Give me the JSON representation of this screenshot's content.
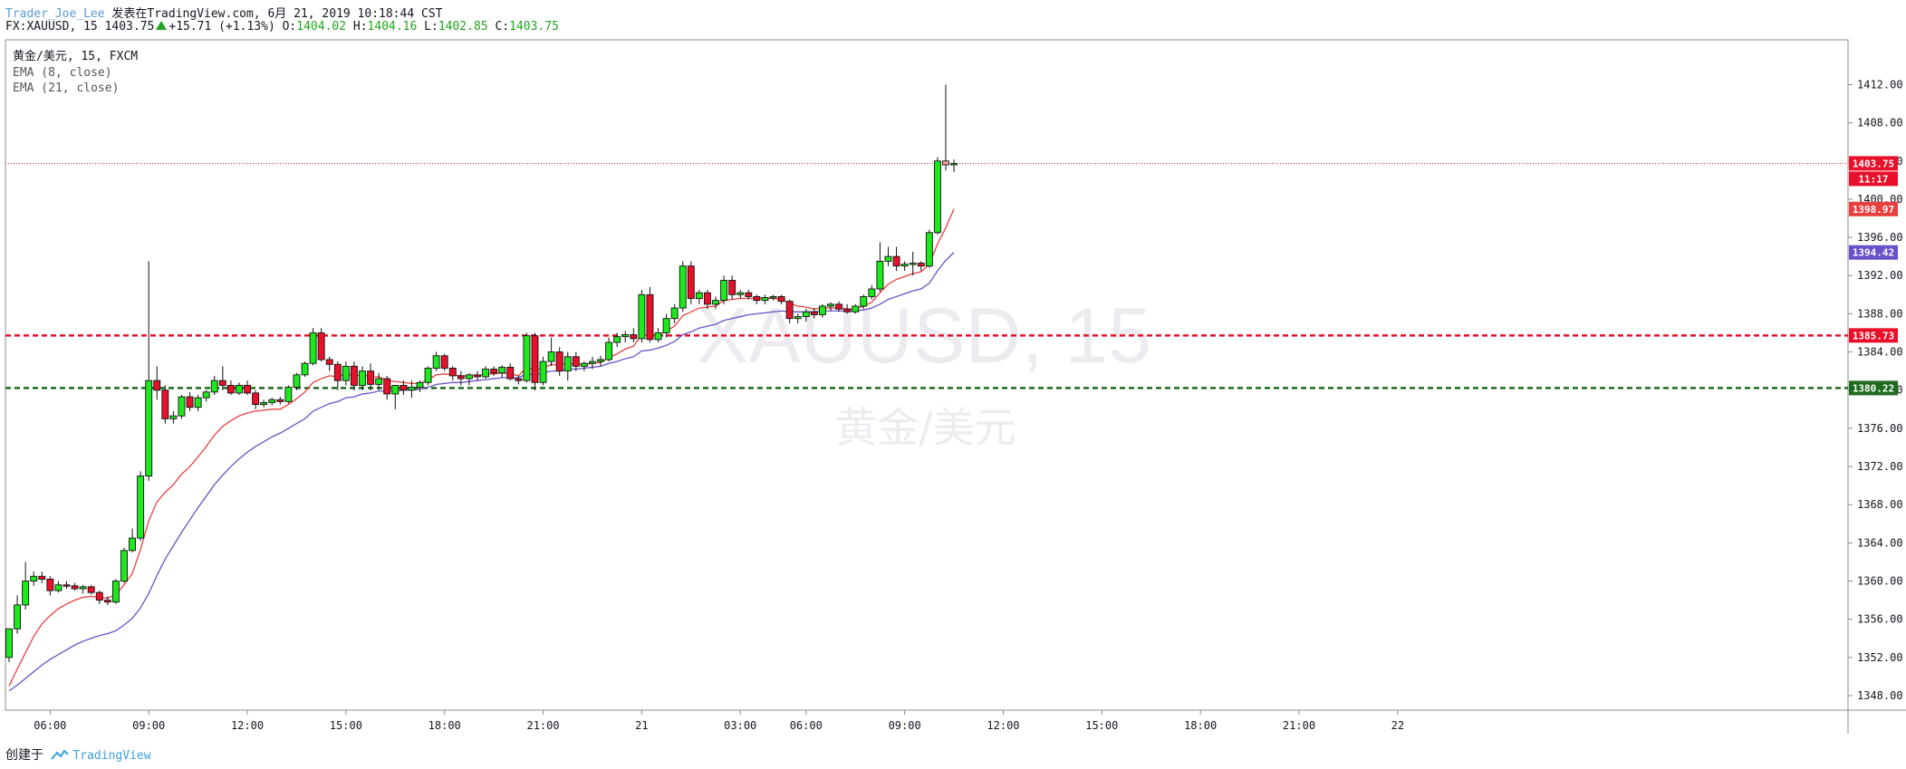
{
  "header": {
    "user": "Trader_Joe_Lee",
    "published": "发表在TradingView.com, 6月 21, 2019 10:18:44 CST",
    "symbol": "FX:XAUUSD, 15",
    "last": "1403.75",
    "change": "+15.71 (+1.13%)",
    "o_label": "O:",
    "o": "1404.02",
    "h_label": "H:",
    "h": "1404.16",
    "l_label": "L:",
    "l": "1402.85",
    "c_label": "C:",
    "c": "1403.75"
  },
  "legend": {
    "title": "黄金/美元, 15, FXCM",
    "ema8": "EMA (8, close)",
    "ema21": "EMA (21, close)"
  },
  "watermark": {
    "symbol": "XAUUSD, 15",
    "name": "黄金/美元"
  },
  "footer": {
    "created": "创建于",
    "brand": "TradingView"
  },
  "colors": {
    "up": "#1ee81e",
    "down": "#e8102a",
    "ema8": "#e83f3f",
    "ema21": "#6a51c9",
    "support": "#1f6b1f",
    "resistance": "#e8102a",
    "last": "#e8102a"
  },
  "chart_data": {
    "type": "candlestick",
    "ylim": [
      1346,
      1414
    ],
    "yticks": [
      "1348.00",
      "1352.00",
      "1356.00",
      "1360.00",
      "1364.00",
      "1368.00",
      "1372.00",
      "1376.00",
      "1380.00",
      "1384.00",
      "1388.00",
      "1392.00",
      "1396.00",
      "1400.00",
      "1404.00",
      "1408.00",
      "1412.00"
    ],
    "xticks": [
      {
        "label": "06:00",
        "bar": 5
      },
      {
        "label": "09:00",
        "bar": 17
      },
      {
        "label": "12:00",
        "bar": 29
      },
      {
        "label": "15:00",
        "bar": 41
      },
      {
        "label": "18:00",
        "bar": 53
      },
      {
        "label": "21:00",
        "bar": 65
      },
      {
        "label": "21",
        "bar": 77
      },
      {
        "label": "03:00",
        "bar": 89
      },
      {
        "label": "06:00",
        "bar": 97
      },
      {
        "label": "09:00",
        "bar": 109
      },
      {
        "label": "12:00",
        "bar": 121
      },
      {
        "label": "15:00",
        "bar": 133
      },
      {
        "label": "18:00",
        "bar": 145
      },
      {
        "label": "21:00",
        "bar": 157
      },
      {
        "label": "22",
        "bar": 169
      }
    ],
    "candles": [
      [
        1352.0,
        1355.0,
        1351.5,
        1355.0
      ],
      [
        1355.0,
        1358.5,
        1354.5,
        1357.5
      ],
      [
        1357.5,
        1362.0,
        1357.0,
        1360.0
      ],
      [
        1360.0,
        1361.0,
        1359.5,
        1360.5
      ],
      [
        1360.5,
        1361.0,
        1359.8,
        1360.2
      ],
      [
        1360.2,
        1360.5,
        1358.5,
        1359.0
      ],
      [
        1359.0,
        1360.0,
        1358.8,
        1359.6
      ],
      [
        1359.6,
        1360.0,
        1359.2,
        1359.5
      ],
      [
        1359.5,
        1359.8,
        1359.0,
        1359.2
      ],
      [
        1359.2,
        1359.6,
        1358.7,
        1359.4
      ],
      [
        1359.4,
        1359.6,
        1358.6,
        1358.8
      ],
      [
        1358.8,
        1359.0,
        1357.6,
        1358.0
      ],
      [
        1358.0,
        1358.4,
        1357.5,
        1357.8
      ],
      [
        1357.8,
        1360.2,
        1357.6,
        1360.0
      ],
      [
        1360.0,
        1363.5,
        1359.8,
        1363.2
      ],
      [
        1363.2,
        1365.5,
        1363.0,
        1364.5
      ],
      [
        1364.5,
        1371.5,
        1364.2,
        1371.0
      ],
      [
        1371.0,
        1393.5,
        1370.5,
        1381.0
      ],
      [
        1381.0,
        1382.5,
        1379.0,
        1380.0
      ],
      [
        1380.0,
        1380.5,
        1376.5,
        1377.0
      ],
      [
        1377.0,
        1377.8,
        1376.5,
        1377.3
      ],
      [
        1377.3,
        1379.5,
        1377.0,
        1379.3
      ],
      [
        1379.3,
        1379.8,
        1377.8,
        1378.2
      ],
      [
        1378.2,
        1379.5,
        1377.8,
        1379.2
      ],
      [
        1379.2,
        1380.0,
        1378.8,
        1379.8
      ],
      [
        1379.8,
        1381.5,
        1379.5,
        1381.0
      ],
      [
        1381.0,
        1382.5,
        1380.0,
        1380.5
      ],
      [
        1380.5,
        1381.0,
        1379.5,
        1379.7
      ],
      [
        1379.7,
        1380.8,
        1379.5,
        1380.5
      ],
      [
        1380.5,
        1381.0,
        1379.5,
        1379.7
      ],
      [
        1379.7,
        1380.0,
        1378.0,
        1378.5
      ],
      [
        1378.5,
        1379.0,
        1378.2,
        1378.7
      ],
      [
        1378.7,
        1379.2,
        1378.4,
        1379.0
      ],
      [
        1379.0,
        1379.3,
        1378.5,
        1378.8
      ],
      [
        1378.8,
        1380.5,
        1378.6,
        1380.3
      ],
      [
        1380.3,
        1381.8,
        1380.0,
        1381.6
      ],
      [
        1381.6,
        1383.0,
        1381.4,
        1382.8
      ],
      [
        1382.8,
        1386.5,
        1382.6,
        1386.0
      ],
      [
        1386.0,
        1386.5,
        1383.0,
        1383.2
      ],
      [
        1383.2,
        1383.5,
        1382.0,
        1382.7
      ],
      [
        1382.7,
        1383.0,
        1380.0,
        1381.0
      ],
      [
        1381.0,
        1383.0,
        1380.5,
        1382.5
      ],
      [
        1382.5,
        1383.0,
        1380.0,
        1380.5
      ],
      [
        1380.5,
        1382.5,
        1380.0,
        1382.0
      ],
      [
        1382.0,
        1382.8,
        1380.0,
        1380.6
      ],
      [
        1380.6,
        1381.8,
        1380.0,
        1381.2
      ],
      [
        1381.2,
        1381.5,
        1379.0,
        1379.6
      ],
      [
        1379.6,
        1380.0,
        1378.0,
        1380.5
      ],
      [
        1380.5,
        1381.0,
        1379.5,
        1380.0
      ],
      [
        1380.0,
        1381.0,
        1379.2,
        1380.3
      ],
      [
        1380.3,
        1381.0,
        1379.8,
        1380.8
      ],
      [
        1380.8,
        1382.5,
        1380.5,
        1382.3
      ],
      [
        1382.3,
        1384.0,
        1382.0,
        1383.6
      ],
      [
        1383.6,
        1383.8,
        1382.0,
        1382.3
      ],
      [
        1382.3,
        1382.5,
        1381.0,
        1381.5
      ],
      [
        1381.5,
        1382.0,
        1380.5,
        1381.2
      ],
      [
        1381.2,
        1381.8,
        1380.5,
        1381.6
      ],
      [
        1381.6,
        1382.0,
        1381.0,
        1381.4
      ],
      [
        1381.4,
        1382.5,
        1381.2,
        1382.2
      ],
      [
        1382.2,
        1382.5,
        1381.5,
        1381.8
      ],
      [
        1381.8,
        1382.6,
        1381.3,
        1382.4
      ],
      [
        1382.4,
        1382.8,
        1381.0,
        1381.2
      ],
      [
        1381.2,
        1381.5,
        1380.6,
        1381.0
      ],
      [
        1381.0,
        1386.0,
        1380.8,
        1385.7
      ],
      [
        1385.7,
        1386.0,
        1380.0,
        1380.8
      ],
      [
        1380.8,
        1383.5,
        1380.5,
        1383.0
      ],
      [
        1383.0,
        1385.5,
        1382.5,
        1384.0
      ],
      [
        1384.0,
        1384.5,
        1381.5,
        1382.0
      ],
      [
        1382.0,
        1384.0,
        1381.0,
        1383.5
      ],
      [
        1383.5,
        1384.0,
        1382.0,
        1382.5
      ],
      [
        1382.5,
        1383.0,
        1382.0,
        1382.8
      ],
      [
        1382.8,
        1383.5,
        1382.2,
        1383.0
      ],
      [
        1383.0,
        1383.6,
        1382.5,
        1383.2
      ],
      [
        1383.2,
        1385.5,
        1383.0,
        1385.0
      ],
      [
        1385.0,
        1386.0,
        1384.5,
        1385.6
      ],
      [
        1385.6,
        1386.2,
        1385.0,
        1385.8
      ],
      [
        1385.8,
        1386.5,
        1385.0,
        1385.4
      ],
      [
        1385.4,
        1390.5,
        1385.0,
        1390.0
      ],
      [
        1390.0,
        1390.8,
        1385.0,
        1385.3
      ],
      [
        1385.3,
        1386.5,
        1385.0,
        1386.0
      ],
      [
        1386.0,
        1388.0,
        1385.5,
        1387.5
      ],
      [
        1387.5,
        1389.0,
        1387.0,
        1388.6
      ],
      [
        1388.6,
        1393.5,
        1388.2,
        1393.0
      ],
      [
        1393.0,
        1393.5,
        1389.0,
        1389.6
      ],
      [
        1389.6,
        1390.5,
        1389.0,
        1390.2
      ],
      [
        1390.2,
        1390.5,
        1388.5,
        1389.0
      ],
      [
        1389.0,
        1389.8,
        1388.5,
        1389.4
      ],
      [
        1389.4,
        1392.0,
        1389.0,
        1391.5
      ],
      [
        1391.5,
        1392.0,
        1389.5,
        1390.0
      ],
      [
        1390.0,
        1390.5,
        1389.6,
        1390.2
      ],
      [
        1390.2,
        1390.5,
        1389.5,
        1389.8
      ],
      [
        1389.8,
        1390.0,
        1389.0,
        1389.4
      ],
      [
        1389.4,
        1390.0,
        1389.0,
        1389.7
      ],
      [
        1389.7,
        1390.0,
        1389.4,
        1389.8
      ],
      [
        1389.8,
        1390.0,
        1389.0,
        1389.3
      ],
      [
        1389.3,
        1389.5,
        1387.0,
        1387.5
      ],
      [
        1387.5,
        1388.0,
        1387.0,
        1387.7
      ],
      [
        1387.7,
        1388.5,
        1387.2,
        1388.2
      ],
      [
        1388.2,
        1388.6,
        1387.5,
        1387.9
      ],
      [
        1387.9,
        1389.0,
        1387.6,
        1388.8
      ],
      [
        1388.8,
        1389.2,
        1388.3,
        1389.0
      ],
      [
        1389.0,
        1389.3,
        1388.2,
        1388.5
      ],
      [
        1388.5,
        1389.0,
        1388.0,
        1388.2
      ],
      [
        1388.2,
        1389.0,
        1388.0,
        1388.8
      ],
      [
        1388.8,
        1390.0,
        1388.5,
        1389.8
      ],
      [
        1389.8,
        1391.0,
        1389.5,
        1390.6
      ],
      [
        1390.6,
        1395.5,
        1390.3,
        1393.5
      ],
      [
        1393.5,
        1395.0,
        1393.0,
        1394.0
      ],
      [
        1394.0,
        1395.0,
        1392.5,
        1393.0
      ],
      [
        1393.0,
        1393.5,
        1392.5,
        1393.2
      ],
      [
        1393.2,
        1394.5,
        1392.0,
        1393.3
      ],
      [
        1393.3,
        1393.5,
        1392.5,
        1393.0
      ],
      [
        1393.0,
        1396.8,
        1392.8,
        1396.5
      ],
      [
        1396.5,
        1404.4,
        1396.3,
        1404.0
      ],
      [
        1404.0,
        1412.0,
        1403.0,
        1403.6
      ],
      [
        1403.6,
        1404.16,
        1402.85,
        1403.75
      ]
    ],
    "ema8": [
      1349.0,
      1350.8,
      1352.5,
      1354.2,
      1355.5,
      1356.4,
      1357.1,
      1357.6,
      1358.0,
      1358.3,
      1358.4,
      1358.3,
      1358.2,
      1358.6,
      1359.6,
      1360.8,
      1363.3,
      1366.3,
      1368.3,
      1369.3,
      1370.1,
      1371.2,
      1372.0,
      1373.0,
      1374.1,
      1375.3,
      1376.2,
      1376.8,
      1377.3,
      1377.6,
      1377.8,
      1377.9,
      1378.0,
      1378.0,
      1378.5,
      1379.1,
      1379.8,
      1380.8,
      1381.2,
      1381.5,
      1381.4,
      1381.7,
      1381.5,
      1381.6,
      1381.4,
      1381.4,
      1381.0,
      1380.9,
      1380.8,
      1380.7,
      1380.7,
      1381.1,
      1381.6,
      1381.7,
      1381.6,
      1381.5,
      1381.5,
      1381.5,
      1381.7,
      1381.7,
      1381.8,
      1381.7,
      1381.5,
      1382.4,
      1382.1,
      1382.3,
      1382.7,
      1382.6,
      1382.8,
      1382.7,
      1382.7,
      1382.8,
      1382.9,
      1383.4,
      1383.8,
      1384.3,
      1384.6,
      1385.8,
      1385.7,
      1385.8,
      1386.2,
      1386.7,
      1387.8,
      1388.2,
      1388.6,
      1388.7,
      1388.8,
      1389.4,
      1389.5,
      1389.6,
      1389.6,
      1389.6,
      1389.6,
      1389.6,
      1389.5,
      1389.1,
      1388.8,
      1388.7,
      1388.5,
      1388.6,
      1388.6,
      1388.6,
      1388.5,
      1388.5,
      1388.8,
      1389.2,
      1390.2,
      1391.1,
      1391.6,
      1391.9,
      1392.2,
      1392.4,
      1393.2,
      1395.3,
      1397.0,
      1398.97
    ],
    "ema21": [
      1348.5,
      1349.1,
      1349.8,
      1350.5,
      1351.2,
      1351.8,
      1352.3,
      1352.8,
      1353.3,
      1353.7,
      1354.0,
      1354.3,
      1354.5,
      1354.8,
      1355.4,
      1356.1,
      1357.2,
      1358.7,
      1360.6,
      1362.3,
      1363.7,
      1365.1,
      1366.4,
      1367.7,
      1368.9,
      1370.1,
      1371.1,
      1372.0,
      1372.8,
      1373.5,
      1374.1,
      1374.6,
      1375.1,
      1375.5,
      1376.0,
      1376.5,
      1377.0,
      1377.8,
      1378.2,
      1378.6,
      1378.8,
      1379.2,
      1379.3,
      1379.6,
      1379.7,
      1379.9,
      1379.9,
      1379.9,
      1380.0,
      1380.0,
      1380.1,
      1380.3,
      1380.6,
      1380.7,
      1380.8,
      1380.8,
      1380.9,
      1381.0,
      1381.1,
      1381.2,
      1381.3,
      1381.3,
      1381.3,
      1381.7,
      1381.6,
      1381.8,
      1382.0,
      1382.0,
      1382.2,
      1382.2,
      1382.3,
      1382.4,
      1382.5,
      1382.8,
      1383.0,
      1383.3,
      1383.5,
      1384.1,
      1384.2,
      1384.4,
      1384.7,
      1385.1,
      1385.8,
      1386.1,
      1386.5,
      1386.7,
      1386.9,
      1387.3,
      1387.5,
      1387.7,
      1387.9,
      1388.0,
      1388.1,
      1388.2,
      1388.3,
      1388.2,
      1388.2,
      1388.2,
      1388.2,
      1388.3,
      1388.3,
      1388.3,
      1388.3,
      1388.3,
      1388.4,
      1388.6,
      1389.0,
      1389.5,
      1389.8,
      1390.1,
      1390.4,
      1390.6,
      1391.2,
      1392.5,
      1393.6,
      1394.42
    ],
    "levels": [
      {
        "name": "resistance",
        "value": 1385.73,
        "label": "1385.73"
      },
      {
        "name": "support",
        "value": 1380.22,
        "label": "1380.22"
      }
    ],
    "price_labels": [
      {
        "name": "last",
        "value": 1403.75,
        "label": "1403.75"
      },
      {
        "name": "countdown",
        "value": 1401.9,
        "label": "11:17"
      },
      {
        "name": "ema8",
        "value": 1398.97,
        "label": "1398.97"
      },
      {
        "name": "ema21",
        "value": 1394.42,
        "label": "1394.42"
      }
    ]
  }
}
